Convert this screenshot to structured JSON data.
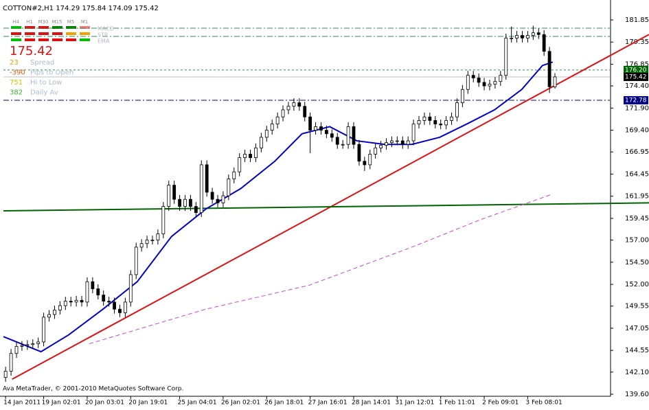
{
  "chart_data": {
    "type": "candlestick",
    "symbol": "COTTON#2,H1",
    "footer": "Ava MetaTrader, © 2001-2010 MetaQuotes Software Corp.",
    "candles": [
      [
        141.5,
        142.7,
        141.0,
        142.2
      ],
      [
        142.2,
        144.7,
        141.7,
        144.2
      ],
      [
        144.2,
        145.5,
        143.7,
        145.0
      ],
      [
        145.0,
        145.6,
        144.5,
        145.1
      ],
      [
        145.1,
        145.7,
        144.6,
        145.2
      ],
      [
        145.2,
        145.8,
        144.7,
        145.3
      ],
      [
        145.3,
        146.0,
        144.8,
        145.5
      ],
      [
        145.5,
        148.8,
        145.0,
        148.3
      ],
      [
        148.3,
        149.1,
        147.8,
        148.6
      ],
      [
        148.6,
        149.6,
        148.1,
        149.1
      ],
      [
        149.1,
        150.1,
        148.6,
        149.6
      ],
      [
        149.6,
        150.6,
        149.1,
        150.1
      ],
      [
        150.1,
        150.6,
        149.5,
        150.0
      ],
      [
        150.0,
        150.7,
        149.5,
        150.2
      ],
      [
        150.2,
        150.7,
        149.5,
        150.0
      ],
      [
        150.0,
        152.8,
        149.5,
        152.3
      ],
      [
        152.3,
        152.8,
        151.0,
        151.5
      ],
      [
        151.5,
        152.0,
        150.3,
        150.8
      ],
      [
        150.8,
        151.3,
        149.6,
        150.1
      ],
      [
        150.1,
        150.6,
        149.5,
        150.0
      ],
      [
        150.0,
        150.5,
        148.7,
        149.2
      ],
      [
        149.2,
        149.7,
        148.3,
        148.8
      ],
      [
        148.8,
        150.5,
        148.3,
        150.0
      ],
      [
        150.0,
        153.6,
        149.5,
        153.1
      ],
      [
        153.1,
        156.7,
        152.6,
        156.2
      ],
      [
        156.2,
        157.1,
        155.7,
        156.6
      ],
      [
        156.6,
        157.5,
        156.1,
        157.0
      ],
      [
        157.0,
        157.5,
        156.5,
        157.0
      ],
      [
        157.0,
        158.2,
        156.5,
        157.7
      ],
      [
        157.7,
        161.3,
        157.2,
        160.8
      ],
      [
        160.8,
        163.7,
        160.3,
        163.2
      ],
      [
        163.2,
        163.7,
        161.1,
        161.6
      ],
      [
        161.6,
        162.1,
        160.3,
        160.8
      ],
      [
        160.8,
        162.1,
        160.3,
        161.6
      ],
      [
        161.6,
        162.1,
        160.3,
        160.8
      ],
      [
        160.8,
        161.3,
        159.6,
        160.1
      ],
      [
        160.1,
        166.0,
        159.6,
        165.5
      ],
      [
        165.5,
        166.0,
        161.9,
        162.4
      ],
      [
        162.4,
        162.9,
        161.1,
        161.6
      ],
      [
        161.6,
        162.1,
        160.7,
        161.2
      ],
      [
        161.2,
        162.5,
        160.7,
        162.0
      ],
      [
        162.0,
        164.4,
        161.5,
        163.9
      ],
      [
        163.9,
        165.2,
        163.4,
        164.7
      ],
      [
        164.7,
        166.8,
        164.2,
        166.3
      ],
      [
        166.3,
        167.2,
        165.8,
        166.7
      ],
      [
        166.7,
        167.2,
        165.8,
        166.3
      ],
      [
        166.3,
        167.9,
        165.8,
        167.4
      ],
      [
        167.4,
        169.1,
        166.9,
        168.6
      ],
      [
        168.6,
        169.9,
        168.1,
        169.4
      ],
      [
        169.4,
        170.6,
        168.9,
        170.1
      ],
      [
        170.1,
        171.4,
        169.6,
        170.9
      ],
      [
        170.9,
        172.2,
        170.4,
        171.7
      ],
      [
        171.7,
        172.6,
        171.2,
        172.1
      ],
      [
        172.1,
        173.0,
        171.6,
        172.5
      ],
      [
        172.5,
        173.0,
        171.6,
        172.1
      ],
      [
        172.1,
        172.6,
        170.4,
        170.9
      ],
      [
        170.9,
        171.4,
        166.8,
        169.4
      ],
      [
        169.4,
        170.3,
        168.9,
        169.8
      ],
      [
        169.8,
        170.3,
        168.9,
        169.4
      ],
      [
        169.4,
        169.9,
        168.5,
        169.0
      ],
      [
        169.0,
        169.5,
        168.1,
        168.6
      ],
      [
        168.6,
        169.1,
        167.3,
        167.8
      ],
      [
        167.8,
        168.3,
        167.3,
        167.8
      ],
      [
        167.8,
        170.3,
        167.3,
        169.8
      ],
      [
        169.8,
        170.3,
        167.3,
        167.8
      ],
      [
        167.8,
        168.3,
        165.4,
        165.9
      ],
      [
        165.9,
        166.4,
        164.8,
        165.5
      ],
      [
        165.5,
        167.2,
        165.0,
        166.7
      ],
      [
        166.7,
        167.9,
        166.2,
        167.4
      ],
      [
        167.4,
        168.2,
        166.9,
        167.7
      ],
      [
        167.7,
        168.5,
        167.2,
        168.0
      ],
      [
        168.0,
        168.7,
        167.5,
        168.2
      ],
      [
        168.2,
        168.7,
        167.7,
        168.2
      ],
      [
        168.2,
        168.7,
        167.3,
        167.8
      ],
      [
        167.8,
        168.7,
        167.3,
        168.2
      ],
      [
        168.2,
        170.6,
        167.7,
        170.1
      ],
      [
        170.1,
        171.0,
        169.6,
        170.5
      ],
      [
        170.5,
        171.4,
        170.0,
        170.9
      ],
      [
        170.9,
        171.4,
        170.0,
        170.5
      ],
      [
        170.5,
        171.0,
        169.6,
        170.1
      ],
      [
        170.1,
        170.6,
        169.5,
        170.0
      ],
      [
        170.0,
        171.0,
        169.5,
        170.5
      ],
      [
        170.5,
        171.4,
        170.0,
        170.9
      ],
      [
        170.9,
        173.0,
        170.4,
        172.5
      ],
      [
        172.5,
        174.5,
        172.0,
        174.0
      ],
      [
        174.0,
        176.1,
        173.5,
        175.6
      ],
      [
        175.6,
        176.1,
        174.8,
        175.3
      ],
      [
        175.3,
        175.8,
        174.3,
        174.8
      ],
      [
        174.8,
        175.3,
        173.9,
        174.4
      ],
      [
        174.4,
        175.1,
        173.9,
        174.6
      ],
      [
        174.6,
        175.4,
        174.1,
        174.9
      ],
      [
        174.9,
        176.1,
        174.4,
        175.6
      ],
      [
        175.6,
        180.3,
        175.1,
        179.8
      ],
      [
        179.8,
        181.1,
        179.3,
        179.8
      ],
      [
        179.8,
        180.6,
        179.3,
        180.1
      ],
      [
        180.1,
        180.6,
        179.3,
        179.8
      ],
      [
        179.8,
        180.6,
        179.3,
        180.1
      ],
      [
        180.1,
        181.2,
        179.6,
        180.4
      ],
      [
        180.4,
        180.9,
        179.7,
        180.2
      ],
      [
        180.2,
        180.7,
        177.8,
        178.3
      ],
      [
        178.3,
        178.8,
        173.6,
        174.3
      ],
      [
        174.29,
        175.84,
        174.09,
        175.42
      ]
    ],
    "xlim": [
      -0.4,
      111.1
    ],
    "xticks": [
      {
        "value": 0,
        "label": "14 Jan 2011"
      },
      {
        "value": 7,
        "label": "19 Jan 02:01"
      },
      {
        "value": 15,
        "label": "20 Jan 03:01"
      },
      {
        "value": 23,
        "label": "20 Jan 19:01"
      },
      {
        "value": 32,
        "label": "25 Jan 04:01"
      },
      {
        "value": 40,
        "label": "26 Jan 02:01"
      },
      {
        "value": 48,
        "label": "26 Jan 18:01"
      },
      {
        "value": 56,
        "label": "27 Jan 16:01"
      },
      {
        "value": 64,
        "label": "28 Jan 14:01"
      },
      {
        "value": 72,
        "label": "31 Jan 12:01"
      },
      {
        "value": 80,
        "label": "1 Feb 11:01"
      },
      {
        "value": 88,
        "label": "2 Feb 09:01"
      },
      {
        "value": 96,
        "label": "3 Feb 08:01"
      }
    ],
    "ylim": [
      139.37,
      183.71
    ],
    "yticks": [
      181.85,
      179.35,
      176.85,
      {
        "value": 174.4,
        "label": "174.40"
      },
      {
        "value": 171.9,
        "label": "171.90"
      },
      {
        "value": 169.4,
        "label": "169.40"
      },
      166.95,
      164.45,
      161.95,
      159.45,
      {
        "value": 157,
        "label": "157.00"
      },
      {
        "value": 154.5,
        "label": "154.50"
      },
      {
        "value": 152,
        "label": "152.00"
      },
      149.55,
      147.05,
      144.55,
      {
        "value": 142.1,
        "label": "142.10"
      },
      {
        "value": 139.6,
        "label": "139.60"
      }
    ],
    "moving_averages": [
      {
        "color": "#0000c8",
        "dash": false,
        "x": [
          -0.4,
          6.5,
          11.6,
          17.9,
          24.2,
          30.5,
          36.8,
          43.2,
          49.5,
          54.5,
          59.6,
          64.6,
          69.7,
          74.7,
          79.8,
          84.8,
          89.9,
          94.9,
          98.7,
          100.6
        ],
        "values": [
          146.1,
          144.4,
          146.3,
          149.2,
          152.3,
          157.4,
          160.5,
          162.8,
          165.9,
          169.0,
          169.8,
          168.2,
          167.8,
          167.8,
          168.6,
          170.1,
          171.7,
          174.0,
          176.7,
          177.1
        ]
      },
      {
        "color": "#cc44cc",
        "dash": true,
        "x": [
          15.4,
          36.8,
          55.8,
          74.7,
          87.3,
          100.6
        ],
        "values": [
          145.3,
          149.2,
          151.9,
          156.2,
          159.3,
          162.2
        ]
      }
    ],
    "trendlines": [
      {
        "color": "#e01010",
        "x": [
          1.2,
          118.3
        ],
        "values": [
          141.3,
          180.2
        ]
      },
      {
        "color": "#006400",
        "x": [
          -0.4,
          118.3
        ],
        "values": [
          160.3,
          161.2
        ]
      }
    ],
    "levels": [
      {
        "value": 180.92,
        "color": "#2e8b57",
        "dash": "8 3 2 3"
      },
      {
        "value": 179.99,
        "color": "#2e8b57",
        "dash": "8 3 2 3"
      },
      {
        "value": {
          "value": 176.2,
          "label": "176.20"
        },
        "color": "#2e8b57",
        "dash": "3 3",
        "box": "#006400"
      },
      {
        "value": 172.78,
        "color": "#000080",
        "dash": "8 3 2 3",
        "box": "#000080"
      }
    ],
    "panel": {
      "timeframes": [
        "H4",
        "H1",
        "M30",
        "M15",
        "M5",
        "M1"
      ],
      "indicators": [
        "MACD",
        "STR",
        "EMA"
      ],
      "rows": [
        {
          "value": 23,
          "label": "Spread",
          "color": "#f0a000"
        },
        {
          "value": -390,
          "label": "Pips to Open",
          "color": "#e06010"
        },
        {
          "value": 751,
          "label": "Hi to Low",
          "color": "#c8c800"
        },
        {
          "value": 382,
          "label": "Daily Av",
          "color": "#40b030"
        }
      ]
    }
  }
}
